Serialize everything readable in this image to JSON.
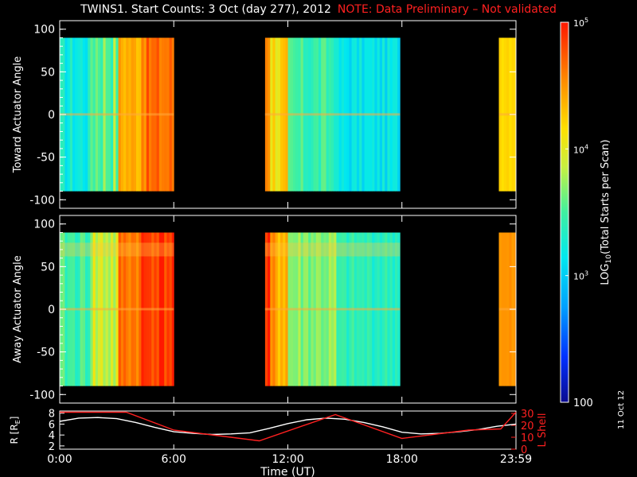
{
  "title": {
    "main": "TWINS1. Start Counts:  3 Oct (day 277), 2012",
    "note": "NOTE: Data Preliminary – Not validated"
  },
  "date_stamp": "11 Oct 12",
  "colors": {
    "background": "#000000",
    "axes": "#ffffff",
    "note": "#ff2020",
    "r_line": "#ffffff",
    "lshell_line": "#ff2020"
  },
  "chart_data": [
    {
      "type": "heatmap",
      "panel": "toward",
      "ylabel": "Toward Actuator Angle",
      "yticks": [
        100,
        50,
        0,
        -50,
        -100
      ],
      "ylim": [
        -110,
        110
      ],
      "xlim": [
        0,
        24
      ],
      "data_blocks_hours": [
        [
          0,
          6.0
        ],
        [
          10.8,
          17.9
        ],
        [
          23.1,
          24
        ]
      ],
      "angle_range": [
        -90,
        90
      ],
      "colormap": "rainbow",
      "zlog": true
    },
    {
      "type": "heatmap",
      "panel": "away",
      "ylabel": "Away Actuator Angle",
      "yticks": [
        100,
        50,
        0,
        -50,
        -100
      ],
      "ylim": [
        -110,
        110
      ],
      "xlim": [
        0,
        24
      ],
      "data_blocks_hours": [
        [
          0,
          6.0
        ],
        [
          10.8,
          17.9
        ],
        [
          23.1,
          24
        ]
      ],
      "angle_range": [
        -90,
        90
      ],
      "colormap": "rainbow",
      "zlog": true
    },
    {
      "type": "line",
      "panel": "orbit",
      "ylabel_left": "R [R",
      "ylabel_left_sub": "E",
      "ylabel_left_end": "]",
      "ylabel_right": "L Shell",
      "yticks_left": [
        2,
        4,
        6,
        8
      ],
      "yticks_right": [
        0,
        10,
        20,
        30
      ],
      "ylim_left": [
        1.4,
        8.4
      ],
      "ylim_right": [
        0,
        32
      ],
      "xlabel": "Time (UT)",
      "xticks": [
        "0:00",
        "6:00",
        "12:00",
        "18:00",
        "23:59"
      ],
      "xtick_hours": [
        0,
        6,
        12,
        18,
        24
      ],
      "series": [
        {
          "axis": "left",
          "x": [
            0,
            1,
            2,
            3,
            4,
            5,
            6,
            7,
            8,
            9,
            10,
            11,
            12,
            13,
            14,
            15,
            16,
            17,
            18,
            19,
            20,
            21,
            22,
            23,
            24
          ],
          "values": [
            6.5,
            7.1,
            7.2,
            7.0,
            6.3,
            5.4,
            4.6,
            4.3,
            4.1,
            4.2,
            4.4,
            5.2,
            6.1,
            6.8,
            7.1,
            6.9,
            6.3,
            5.5,
            4.5,
            4.2,
            4.3,
            4.6,
            5.0,
            5.6,
            6.0
          ]
        },
        {
          "axis": "right",
          "x": [
            0,
            3.5,
            6,
            10.5,
            14.5,
            18,
            21.5,
            23.2,
            24
          ],
          "values": [
            31,
            31,
            16,
            7,
            29,
            9,
            16,
            17,
            31
          ]
        }
      ]
    },
    {
      "type": "heatmap",
      "panel": "colorbar",
      "zlabel_pre": "LOG",
      "zlabel_sub": "10",
      "zlabel_post": "(Total Starts per Scan)",
      "zticks": [
        "10^5",
        "10^4",
        "10^3",
        "100"
      ],
      "zlim": [
        100,
        100000
      ],
      "colormap": "rainbow"
    }
  ]
}
